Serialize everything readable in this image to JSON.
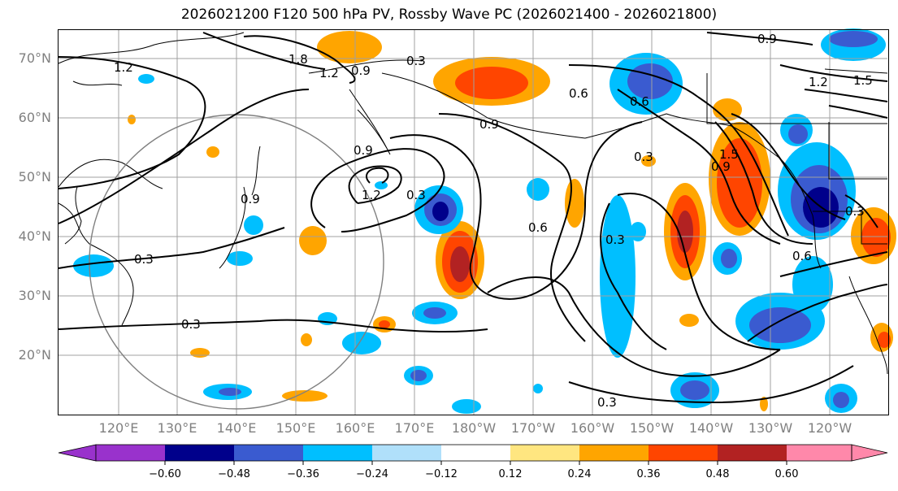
{
  "title": "2026021200 F120 500 hPa PV, Rossby Wave PC (2026021400 - 2026021800)",
  "lat_labels": [
    "70°N",
    "60°N",
    "50°N",
    "40°N",
    "30°N",
    "20°N"
  ],
  "lon_labels": [
    "120°E",
    "130°E",
    "140°E",
    "150°E",
    "160°E",
    "170°E",
    "180°W",
    "170°W",
    "160°W",
    "150°W",
    "140°W",
    "130°W",
    "120°W"
  ],
  "colorbar": {
    "ticks": [
      "−0.60",
      "−0.48",
      "−0.36",
      "−0.24",
      "−0.12",
      "0.12",
      "0.24",
      "0.36",
      "0.48",
      "0.60"
    ],
    "colors": [
      "#9932cc",
      "#00008b",
      "#3a5bd0",
      "#00bfff",
      "#b0e0fa",
      "#ffffff",
      "#ffe680",
      "#ffa500",
      "#ff4500",
      "#b22222",
      "#ff88aa"
    ]
  },
  "contour_labels": [
    "1.8",
    "1.2",
    "0.9",
    "1.2",
    "0.9",
    "0.9",
    "0.9",
    "1.2",
    "0.3",
    "0.6",
    "0.3",
    "0.6",
    "0.3",
    "1.5",
    "0.9",
    "1.2",
    "1.5",
    "0.6",
    "0.3",
    "0.3",
    "0.3",
    "0.3",
    "0.3",
    "0.9",
    "0.6"
  ]
}
